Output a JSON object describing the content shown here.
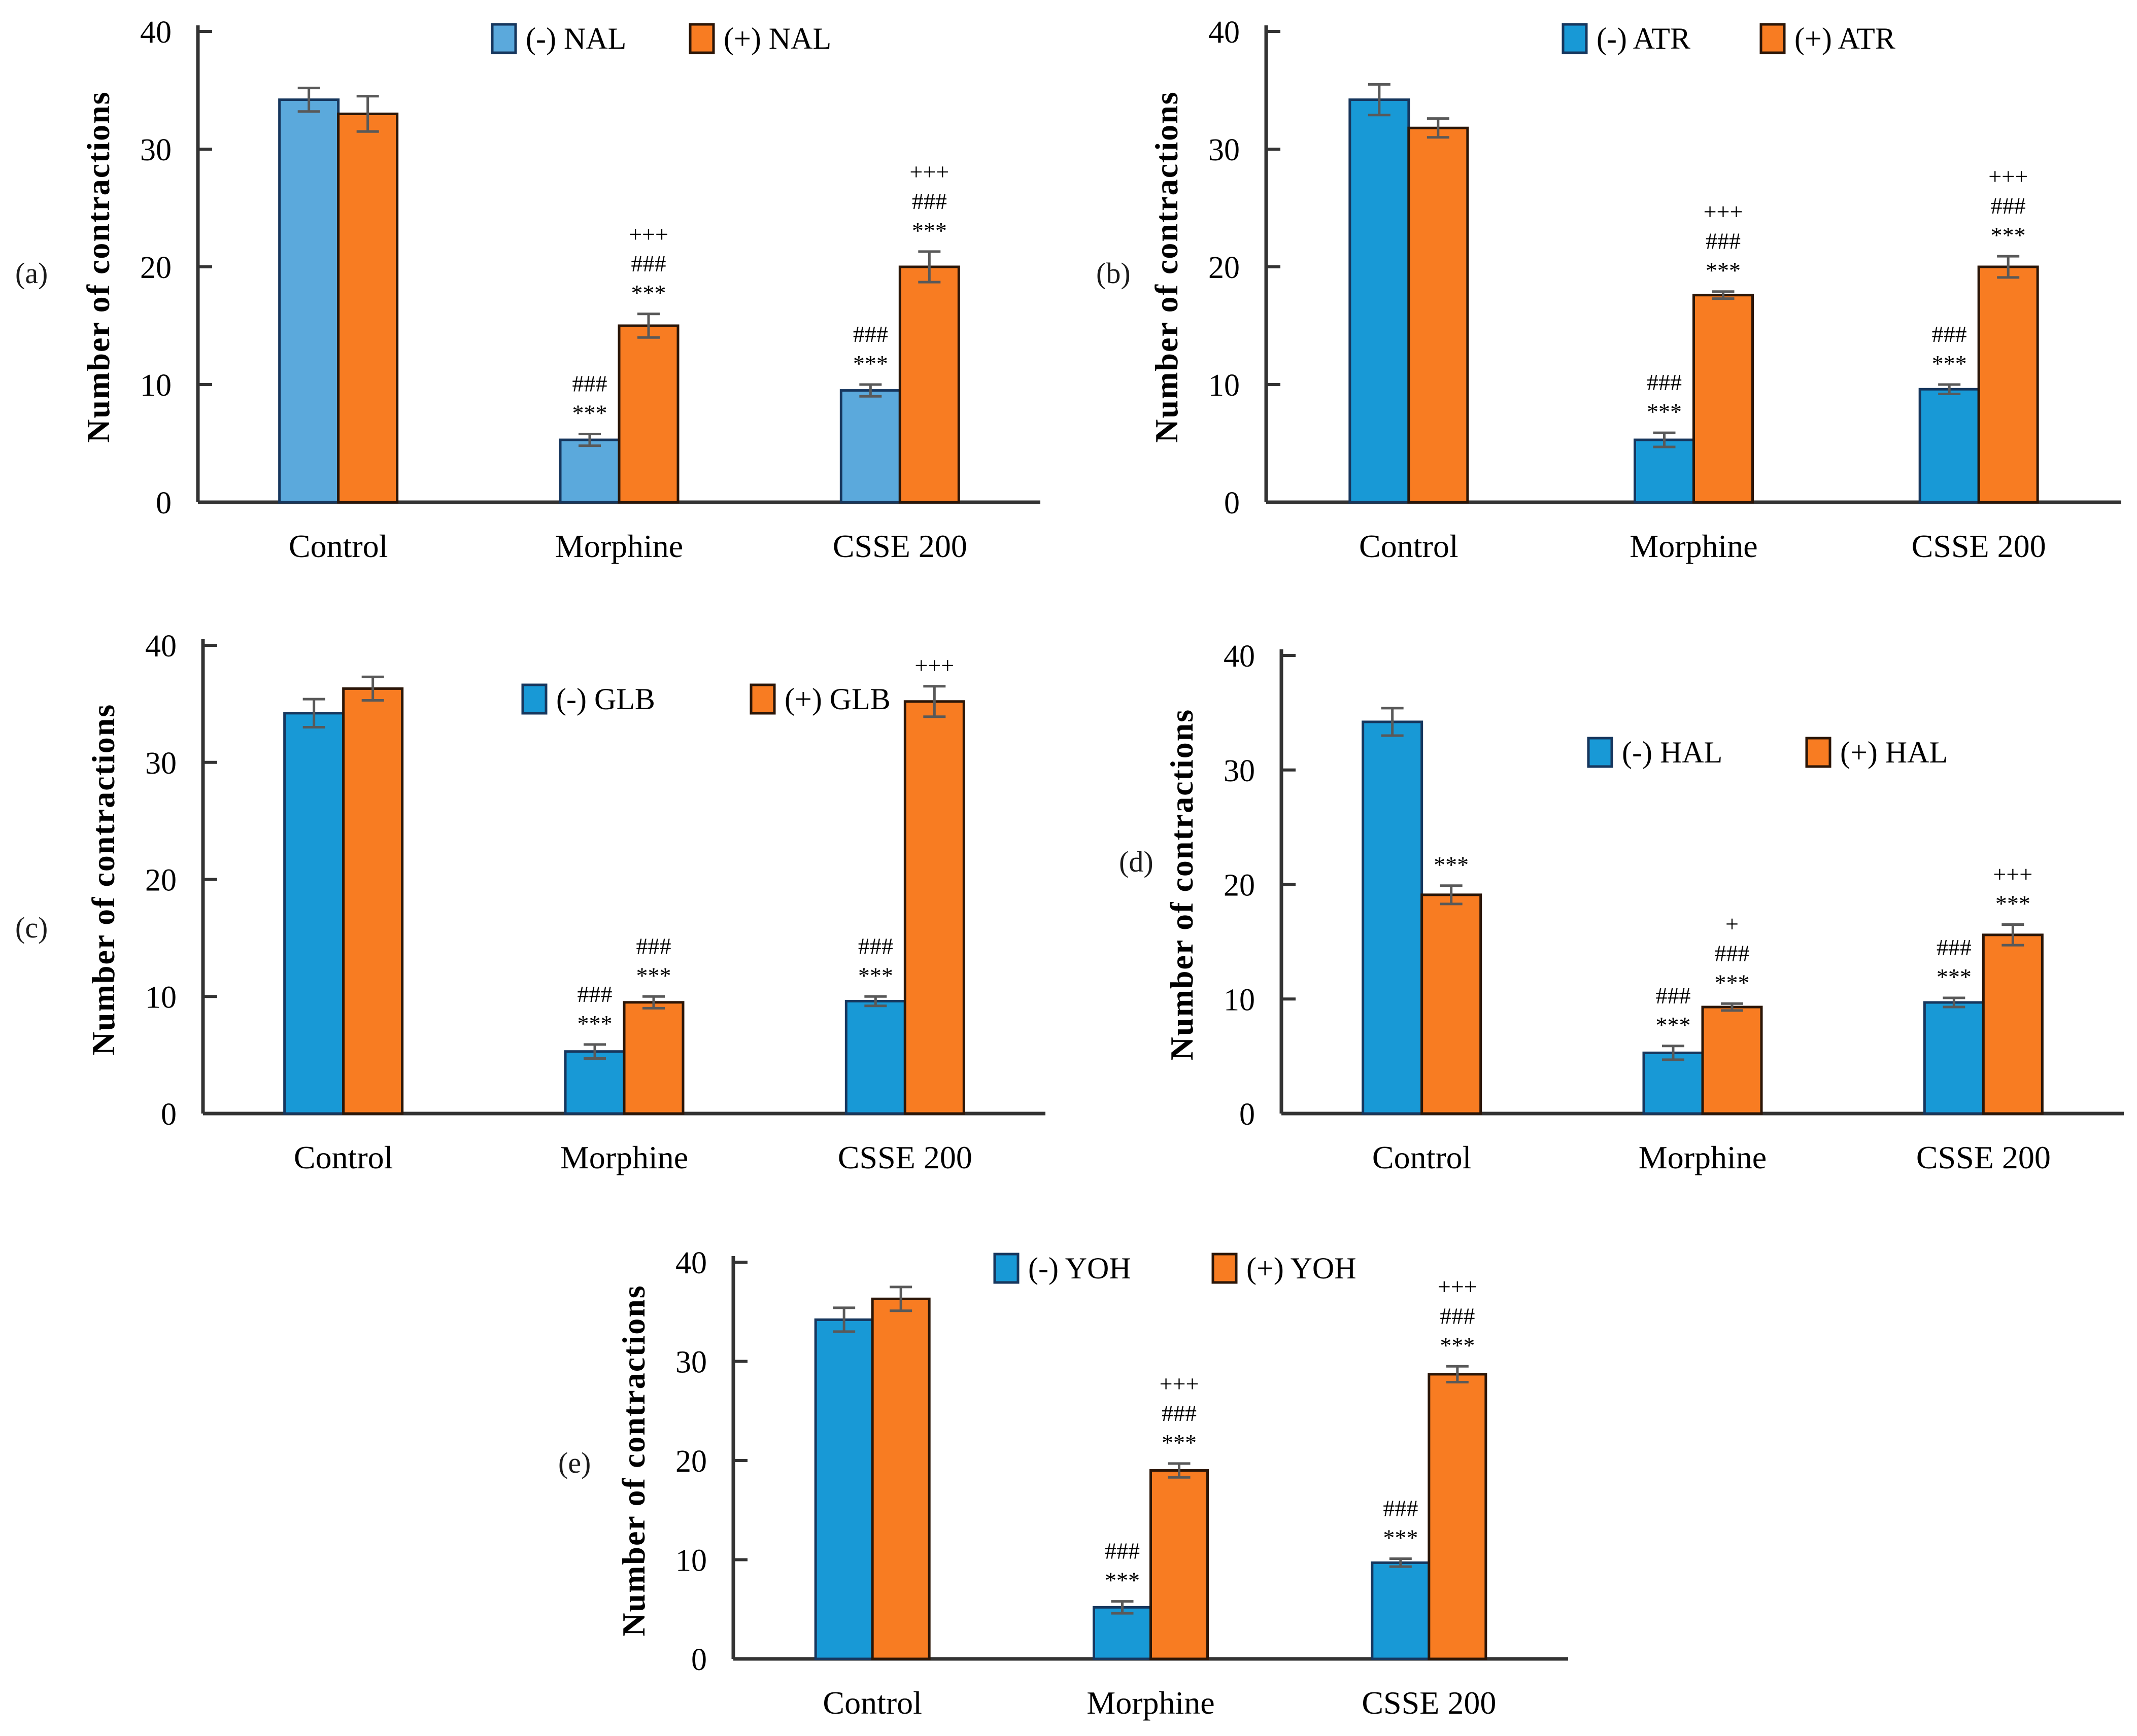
{
  "figure": {
    "ylabel": "Number of contractions",
    "categories": [
      "Control",
      "Morphine",
      "CSSE 200"
    ],
    "ylim": [
      0,
      40
    ],
    "yticks": [
      0,
      10,
      20,
      30,
      40
    ]
  },
  "styles": {
    "axis_color": "#333333",
    "error_color": "#595959",
    "text_color": "#000000",
    "background": "#ffffff",
    "blue_light": "#5BA9DC",
    "blue": "#1899D6",
    "orange": "#F87C22",
    "blue_border": "#17375E",
    "orange_border": "#2B1608"
  },
  "chart_data": [
    {
      "type": "bar",
      "panel_label": "(a)",
      "title": "",
      "xlabel": "",
      "ylabel": "Number of contractions",
      "categories": [
        "Control",
        "Morphine",
        "CSSE 200"
      ],
      "ylim": [
        0,
        40
      ],
      "yticks": [
        0,
        10,
        20,
        30,
        40
      ],
      "legend_position": "top-center",
      "series": [
        {
          "name": "(-) NAL",
          "color": "#5BA9DC",
          "border": "#17375E",
          "values": [
            34.2,
            5.3,
            9.5
          ],
          "errors": [
            1.0,
            0.5,
            0.5
          ],
          "annotations": [
            [],
            [
              "###",
              "***"
            ],
            [
              "###",
              "***"
            ]
          ]
        },
        {
          "name": "(+) NAL",
          "color": "#F87C22",
          "border": "#2B1608",
          "values": [
            33.0,
            15.0,
            20.0
          ],
          "errors": [
            1.5,
            1.0,
            1.3
          ],
          "annotations": [
            [],
            [
              "+++",
              "###",
              "***"
            ],
            [
              "+++",
              "###",
              "***"
            ]
          ]
        }
      ]
    },
    {
      "type": "bar",
      "panel_label": "(b)",
      "title": "",
      "xlabel": "",
      "ylabel": "Number of contractions",
      "categories": [
        "Control",
        "Morphine",
        "CSSE 200"
      ],
      "ylim": [
        0,
        40
      ],
      "yticks": [
        0,
        10,
        20,
        30,
        40
      ],
      "legend_position": "top-center",
      "series": [
        {
          "name": "(-) ATR",
          "color": "#1899D6",
          "border": "#17375E",
          "values": [
            34.2,
            5.3,
            9.6
          ],
          "errors": [
            1.3,
            0.6,
            0.4
          ],
          "annotations": [
            [],
            [
              "###",
              "***"
            ],
            [
              "###",
              "***"
            ]
          ]
        },
        {
          "name": "(+) ATR",
          "color": "#F87C22",
          "border": "#2B1608",
          "values": [
            31.8,
            17.6,
            20.0
          ],
          "errors": [
            0.8,
            0.3,
            0.9
          ],
          "annotations": [
            [],
            [
              "+++",
              "###",
              "***"
            ],
            [
              "+++",
              "###",
              "***"
            ]
          ]
        }
      ]
    },
    {
      "type": "bar",
      "panel_label": "(c)",
      "title": "",
      "xlabel": "",
      "ylabel": "Number of contractions",
      "categories": [
        "Control",
        "Morphine",
        "CSSE 200"
      ],
      "ylim": [
        0,
        40
      ],
      "yticks": [
        0,
        10,
        20,
        30,
        40
      ],
      "legend_position": "top-center-inside",
      "series": [
        {
          "name": "(-) GLB",
          "color": "#1899D6",
          "border": "#17375E",
          "values": [
            34.2,
            5.3,
            9.6
          ],
          "errors": [
            1.2,
            0.6,
            0.4
          ],
          "annotations": [
            [],
            [
              "###",
              "***"
            ],
            [
              "###",
              "***"
            ]
          ]
        },
        {
          "name": "(+) GLB",
          "color": "#F87C22",
          "border": "#2B1608",
          "values": [
            36.3,
            9.5,
            35.2
          ],
          "errors": [
            1.0,
            0.5,
            1.3
          ],
          "annotations": [
            [],
            [
              "###",
              "***"
            ],
            [
              "+++"
            ]
          ]
        }
      ]
    },
    {
      "type": "bar",
      "panel_label": "(d)",
      "title": "",
      "xlabel": "",
      "ylabel": "Number of contractions",
      "categories": [
        "Control",
        "Morphine",
        "CSSE 200"
      ],
      "ylim": [
        0,
        40
      ],
      "yticks": [
        0,
        10,
        20,
        30,
        40
      ],
      "legend_position": "top-center-inside",
      "series": [
        {
          "name": "(-) HAL",
          "color": "#1899D6",
          "border": "#17375E",
          "values": [
            34.2,
            5.3,
            9.7
          ],
          "errors": [
            1.2,
            0.6,
            0.4
          ],
          "annotations": [
            [],
            [
              "###",
              "***"
            ],
            [
              "###",
              "***"
            ]
          ]
        },
        {
          "name": "(+) HAL",
          "color": "#F87C22",
          "border": "#2B1608",
          "values": [
            19.1,
            9.3,
            15.6
          ],
          "errors": [
            0.8,
            0.3,
            0.9
          ],
          "annotations": [
            [
              "***"
            ],
            [
              "+",
              "###",
              "***"
            ],
            [
              "+++",
              "***"
            ]
          ]
        }
      ]
    },
    {
      "type": "bar",
      "panel_label": "(e)",
      "title": "",
      "xlabel": "",
      "ylabel": "Number of contractions",
      "categories": [
        "Control",
        "Morphine",
        "CSSE 200"
      ],
      "ylim": [
        0,
        40
      ],
      "yticks": [
        0,
        10,
        20,
        30,
        40
      ],
      "legend_position": "top-center",
      "series": [
        {
          "name": "(-) YOH",
          "color": "#1899D6",
          "border": "#17375E",
          "values": [
            34.2,
            5.2,
            9.7
          ],
          "errors": [
            1.2,
            0.6,
            0.4
          ],
          "annotations": [
            [],
            [
              "###",
              "***"
            ],
            [
              "###",
              "***"
            ]
          ]
        },
        {
          "name": "(+) YOH",
          "color": "#F87C22",
          "border": "#2B1608",
          "values": [
            36.3,
            19.0,
            28.7
          ],
          "errors": [
            1.2,
            0.7,
            0.8
          ],
          "annotations": [
            [],
            [
              "+++",
              "###",
              "***"
            ],
            [
              "+++",
              "###",
              "***"
            ]
          ]
        }
      ]
    }
  ]
}
